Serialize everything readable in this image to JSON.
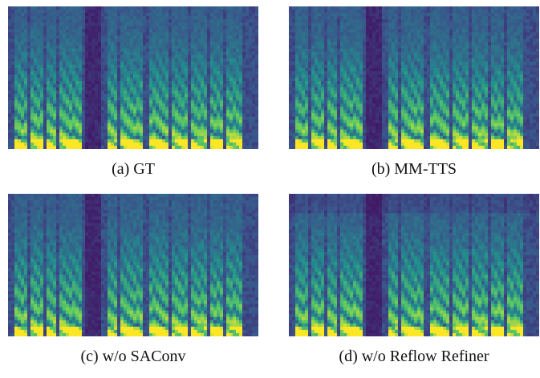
{
  "figure": {
    "panels": [
      {
        "label": "(a) GT",
        "seed": 11,
        "variant": "gt"
      },
      {
        "label": "(b) MM-TTS",
        "seed": 23,
        "variant": "mm"
      },
      {
        "label": "(c) w/o SAConv",
        "seed": 37,
        "variant": "saconv"
      },
      {
        "label": "(d) w/o Reflow Refiner",
        "seed": 53,
        "variant": "reflow"
      }
    ],
    "colormap": [
      "#440154",
      "#3b528b",
      "#21918c",
      "#5ec962",
      "#fde725"
    ]
  }
}
